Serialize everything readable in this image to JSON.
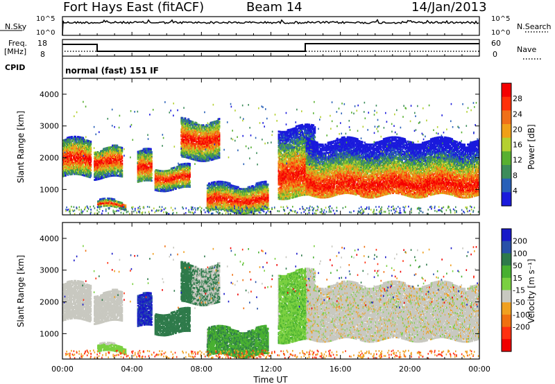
{
  "header": {
    "station": "Fort Hays East (fitACF)",
    "beam": "Beam 14",
    "date": "14/Jan/2013"
  },
  "top_panels": {
    "nsky_label": "N.Sky",
    "nsearch_label": "N.Search",
    "nsky_ticks": [
      "10^5",
      "10^0"
    ],
    "nsearch_ticks": [
      "10^5",
      "10^0"
    ],
    "freq_label": "Freq.",
    "freq_unit": "[MHz]",
    "freq_ticks": [
      "18",
      "8"
    ],
    "nave_label": "Nave",
    "nave_ticks": [
      "60",
      "0"
    ],
    "cpid_label": "CPID",
    "cpid_text": "normal (fast) 151 IF"
  },
  "chart_data": [
    {
      "type": "heatmap",
      "name": "power",
      "ylabel": "Slant Range [km]",
      "yticks": [
        "1000",
        "2000",
        "3000",
        "4000"
      ],
      "ylim": [
        200,
        4500
      ],
      "colorbar_label": "Power [dB]",
      "colorbar_ticks": [
        "4",
        "8",
        "12",
        "16",
        "20",
        "24",
        "28"
      ],
      "colors": [
        "#1a1adc",
        "#2860b8",
        "#3c8c5a",
        "#58b030",
        "#b4d030",
        "#f0a018",
        "#f07018",
        "#ff3008",
        "#f40000"
      ],
      "xlim_hours": [
        0,
        24
      ],
      "features": [
        {
          "t": [
            0.0,
            1.6
          ],
          "r0": 1450,
          "r1": 2600,
          "peak": 2000
        },
        {
          "t": [
            1.8,
            3.4
          ],
          "r0": 1400,
          "r1": 2300,
          "peak": 1900
        },
        {
          "t": [
            2.0,
            3.6
          ],
          "r0": 450,
          "r1": 650,
          "peak": 550
        },
        {
          "t": [
            4.3,
            5.1
          ],
          "r0": 1250,
          "r1": 2200,
          "peak": 1700
        },
        {
          "t": [
            5.3,
            7.3
          ],
          "r0": 1050,
          "r1": 1750,
          "peak": 1400
        },
        {
          "t": [
            6.8,
            9.0
          ],
          "r0": 2000,
          "r1": 3200,
          "peak": 2600
        },
        {
          "t": [
            8.3,
            11.8
          ],
          "r0": 350,
          "r1": 1200,
          "peak": 700
        },
        {
          "t": [
            12.4,
            14.5
          ],
          "r0": 800,
          "r1": 3000,
          "peak": 1500
        },
        {
          "t": [
            14.0,
            24.0
          ],
          "r0": 850,
          "r1": 2600,
          "peak": 1200
        }
      ]
    },
    {
      "type": "heatmap",
      "name": "velocity",
      "xlabel": "Time UT",
      "xticks": [
        "00:00",
        "04:00",
        "08:00",
        "12:00",
        "16:00",
        "20:00",
        "00:00"
      ],
      "ylabel": "Slant Range [km]",
      "yticks": [
        "1000",
        "2000",
        "3000",
        "4000"
      ],
      "ylim": [
        200,
        4500
      ],
      "colorbar_label": "Velocity [m s⁻¹]",
      "colorbar_ticks": [
        "200",
        "100",
        "50",
        "15",
        "-15",
        "-50",
        "-100",
        "-200"
      ],
      "colors": [
        "#1818c8",
        "#2850a8",
        "#2e7a4a",
        "#48b030",
        "#7ad040",
        "#c8c8c0",
        "#f0a020",
        "#f07010",
        "#ff3010",
        "#f00000"
      ],
      "xlim_hours": [
        0,
        24
      ]
    }
  ]
}
